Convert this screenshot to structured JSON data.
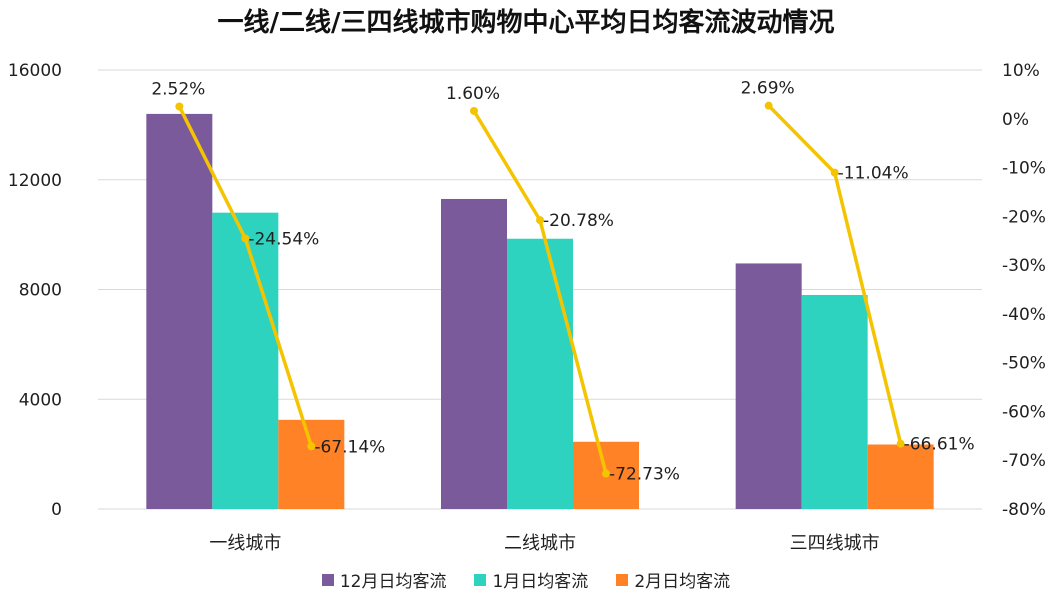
{
  "chart_data": {
    "type": "bar",
    "title": "一线/二线/三四线城市购物中心平均日均客流波动情况",
    "categories": [
      "一线城市",
      "二线城市",
      "三四线城市"
    ],
    "series": [
      {
        "name": "12月日均客流",
        "type": "bar",
        "color": "#7b5a9b",
        "values": [
          14400,
          11300,
          8950
        ]
      },
      {
        "name": "1月日均客流",
        "type": "bar",
        "color": "#2ed3c0",
        "values": [
          10800,
          9850,
          7800
        ]
      },
      {
        "name": "2月日均客流",
        "type": "bar",
        "color": "#ff8227",
        "values": [
          3250,
          2450,
          2350
        ]
      }
    ],
    "line_series": {
      "axis": "right",
      "color": "#f5c400",
      "points": [
        [
          2.52,
          -24.54,
          -67.14
        ],
        [
          1.6,
          -20.78,
          -72.73
        ],
        [
          2.69,
          -11.04,
          -66.61
        ]
      ],
      "labels": [
        [
          "2.52%",
          "-24.54%",
          "-67.14%"
        ],
        [
          "1.60%",
          "-20.78%",
          "-72.73%"
        ],
        [
          "2.69%",
          "-11.04%",
          "-66.61%"
        ]
      ]
    },
    "y_left": {
      "ylim": [
        0,
        16000
      ],
      "ticks": [
        0,
        4000,
        8000,
        12000,
        16000
      ],
      "tick_labels": [
        "0",
        "4000",
        "8000",
        "12000",
        "16000"
      ]
    },
    "y_right": {
      "ylim": [
        -80,
        10
      ],
      "ticks": [
        10,
        0,
        -10,
        -20,
        -30,
        -40,
        -50,
        -60,
        -70,
        -80
      ],
      "tick_labels": [
        "10%",
        "0%",
        "-10%",
        "-20%",
        "-30%",
        "-40%",
        "-50%",
        "-60%",
        "-70%",
        "-80%"
      ]
    },
    "grid": true,
    "legend_position": "bottom"
  }
}
